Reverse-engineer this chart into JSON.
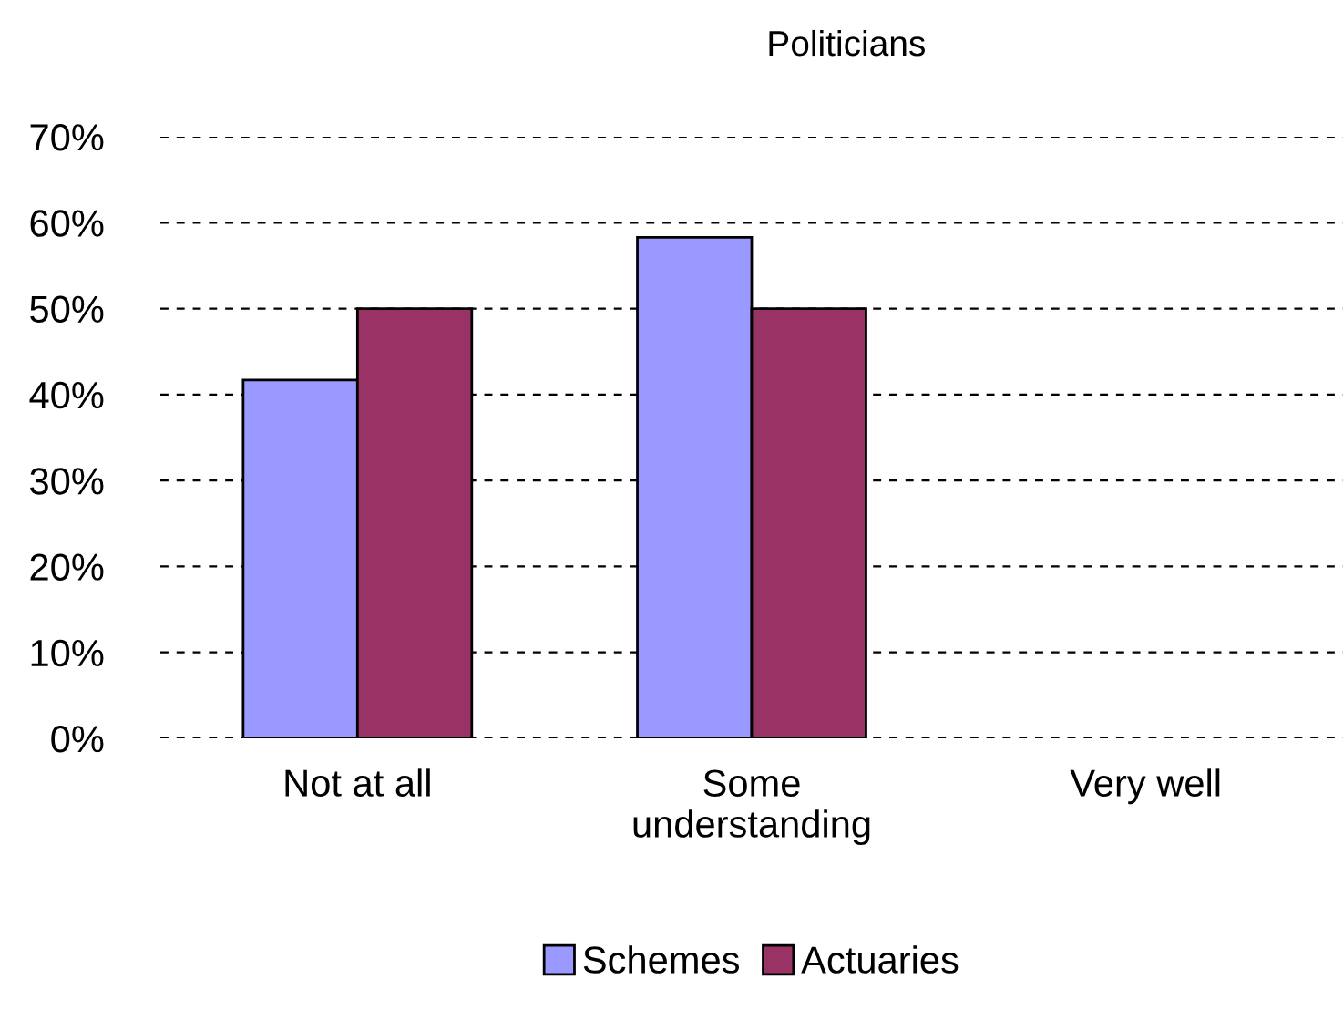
{
  "chart_data": {
    "type": "bar",
    "title": "Politicians",
    "categories": [
      "Not at all",
      "Some\nunderstanding",
      "Very well"
    ],
    "series": [
      {
        "name": "Schemes",
        "color": "#9999ff",
        "values": [
          41.7,
          58.3,
          null
        ]
      },
      {
        "name": "Actuaries",
        "color": "#993366",
        "values": [
          50,
          50,
          null
        ]
      }
    ],
    "ylim": [
      0,
      70
    ],
    "yticks": [
      {
        "value": 0,
        "label": "0%"
      },
      {
        "value": 10,
        "label": "10%"
      },
      {
        "value": 20,
        "label": "20%"
      },
      {
        "value": 30,
        "label": "30%"
      },
      {
        "value": 40,
        "label": "40%"
      },
      {
        "value": 50,
        "label": "50%"
      },
      {
        "value": 60,
        "label": "60%"
      },
      {
        "value": 70,
        "label": "70%"
      }
    ],
    "grid": "y",
    "legend": "bottom"
  }
}
